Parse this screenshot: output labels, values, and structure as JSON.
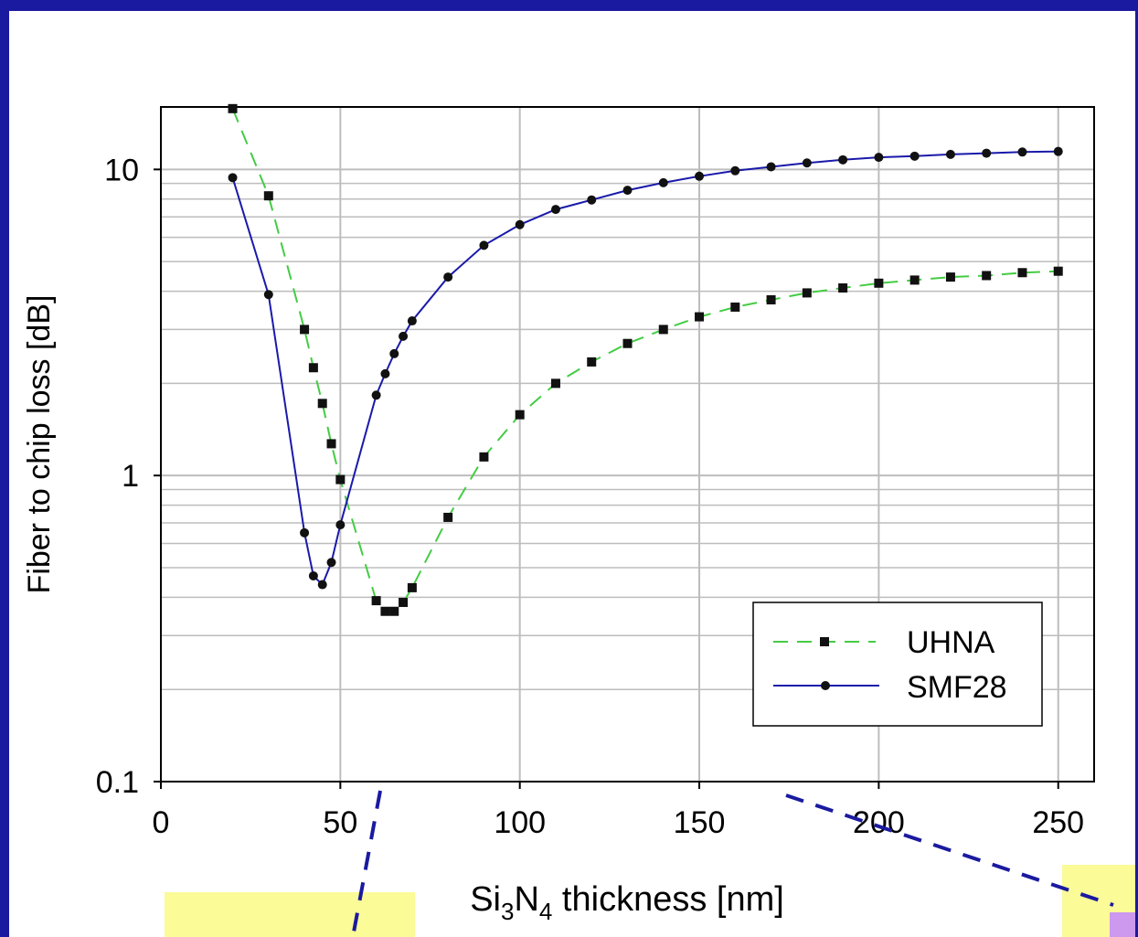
{
  "chart_data": {
    "type": "line",
    "xlabel": {
      "prefix": "Si",
      "sub1": "3",
      "mid": "N",
      "sub2": "4",
      "suffix": " thickness [nm]"
    },
    "ylabel": "Fiber to chip loss [dB]",
    "xlim": [
      0,
      260
    ],
    "ylim": [
      0.1,
      16
    ],
    "yscale": "log",
    "grid": true,
    "legend_placement": "bottom-right",
    "x_ticks": [
      0,
      50,
      100,
      150,
      200,
      250
    ],
    "x_tick_labels": [
      "0",
      "50",
      "100",
      "150",
      "200",
      "250"
    ],
    "y_ticks": [
      0.1,
      1,
      10
    ],
    "y_tick_labels": [
      "0.1",
      "1",
      "10"
    ],
    "series": [
      {
        "name": "UHNA",
        "color": "#44cc44",
        "dash": true,
        "marker": "square",
        "x": [
          20,
          30,
          40,
          42.5,
          45,
          47.5,
          50,
          60,
          62.5,
          65,
          67.5,
          70,
          80,
          90,
          100,
          110,
          120,
          130,
          140,
          150,
          160,
          170,
          180,
          190,
          200,
          210,
          220,
          230,
          240,
          250
        ],
        "y": [
          15.8,
          8.2,
          3.0,
          2.25,
          1.72,
          1.27,
          0.97,
          0.39,
          0.36,
          0.36,
          0.385,
          0.43,
          0.73,
          1.15,
          1.58,
          2.0,
          2.35,
          2.7,
          3.0,
          3.3,
          3.55,
          3.75,
          3.95,
          4.1,
          4.25,
          4.35,
          4.45,
          4.5,
          4.6,
          4.65
        ]
      },
      {
        "name": "SMF28",
        "color": "#1a1aaa",
        "dash": false,
        "marker": "circle",
        "x": [
          20,
          30,
          40,
          42.5,
          45,
          47.5,
          50,
          60,
          62.5,
          65,
          67.5,
          70,
          80,
          90,
          100,
          110,
          120,
          130,
          140,
          150,
          160,
          170,
          180,
          190,
          200,
          210,
          220,
          230,
          240,
          250
        ],
        "y": [
          9.4,
          3.9,
          0.65,
          0.47,
          0.44,
          0.52,
          0.69,
          1.83,
          2.15,
          2.5,
          2.85,
          3.2,
          4.45,
          5.65,
          6.6,
          7.4,
          7.95,
          8.55,
          9.05,
          9.5,
          9.9,
          10.2,
          10.5,
          10.75,
          10.95,
          11.05,
          11.2,
          11.3,
          11.4,
          11.45
        ]
      }
    ]
  },
  "decor": {
    "dash_line_color": "#1a1aa0",
    "highlight_yellow": "#fbfb98",
    "highlight_violet": "#cc99ee"
  }
}
